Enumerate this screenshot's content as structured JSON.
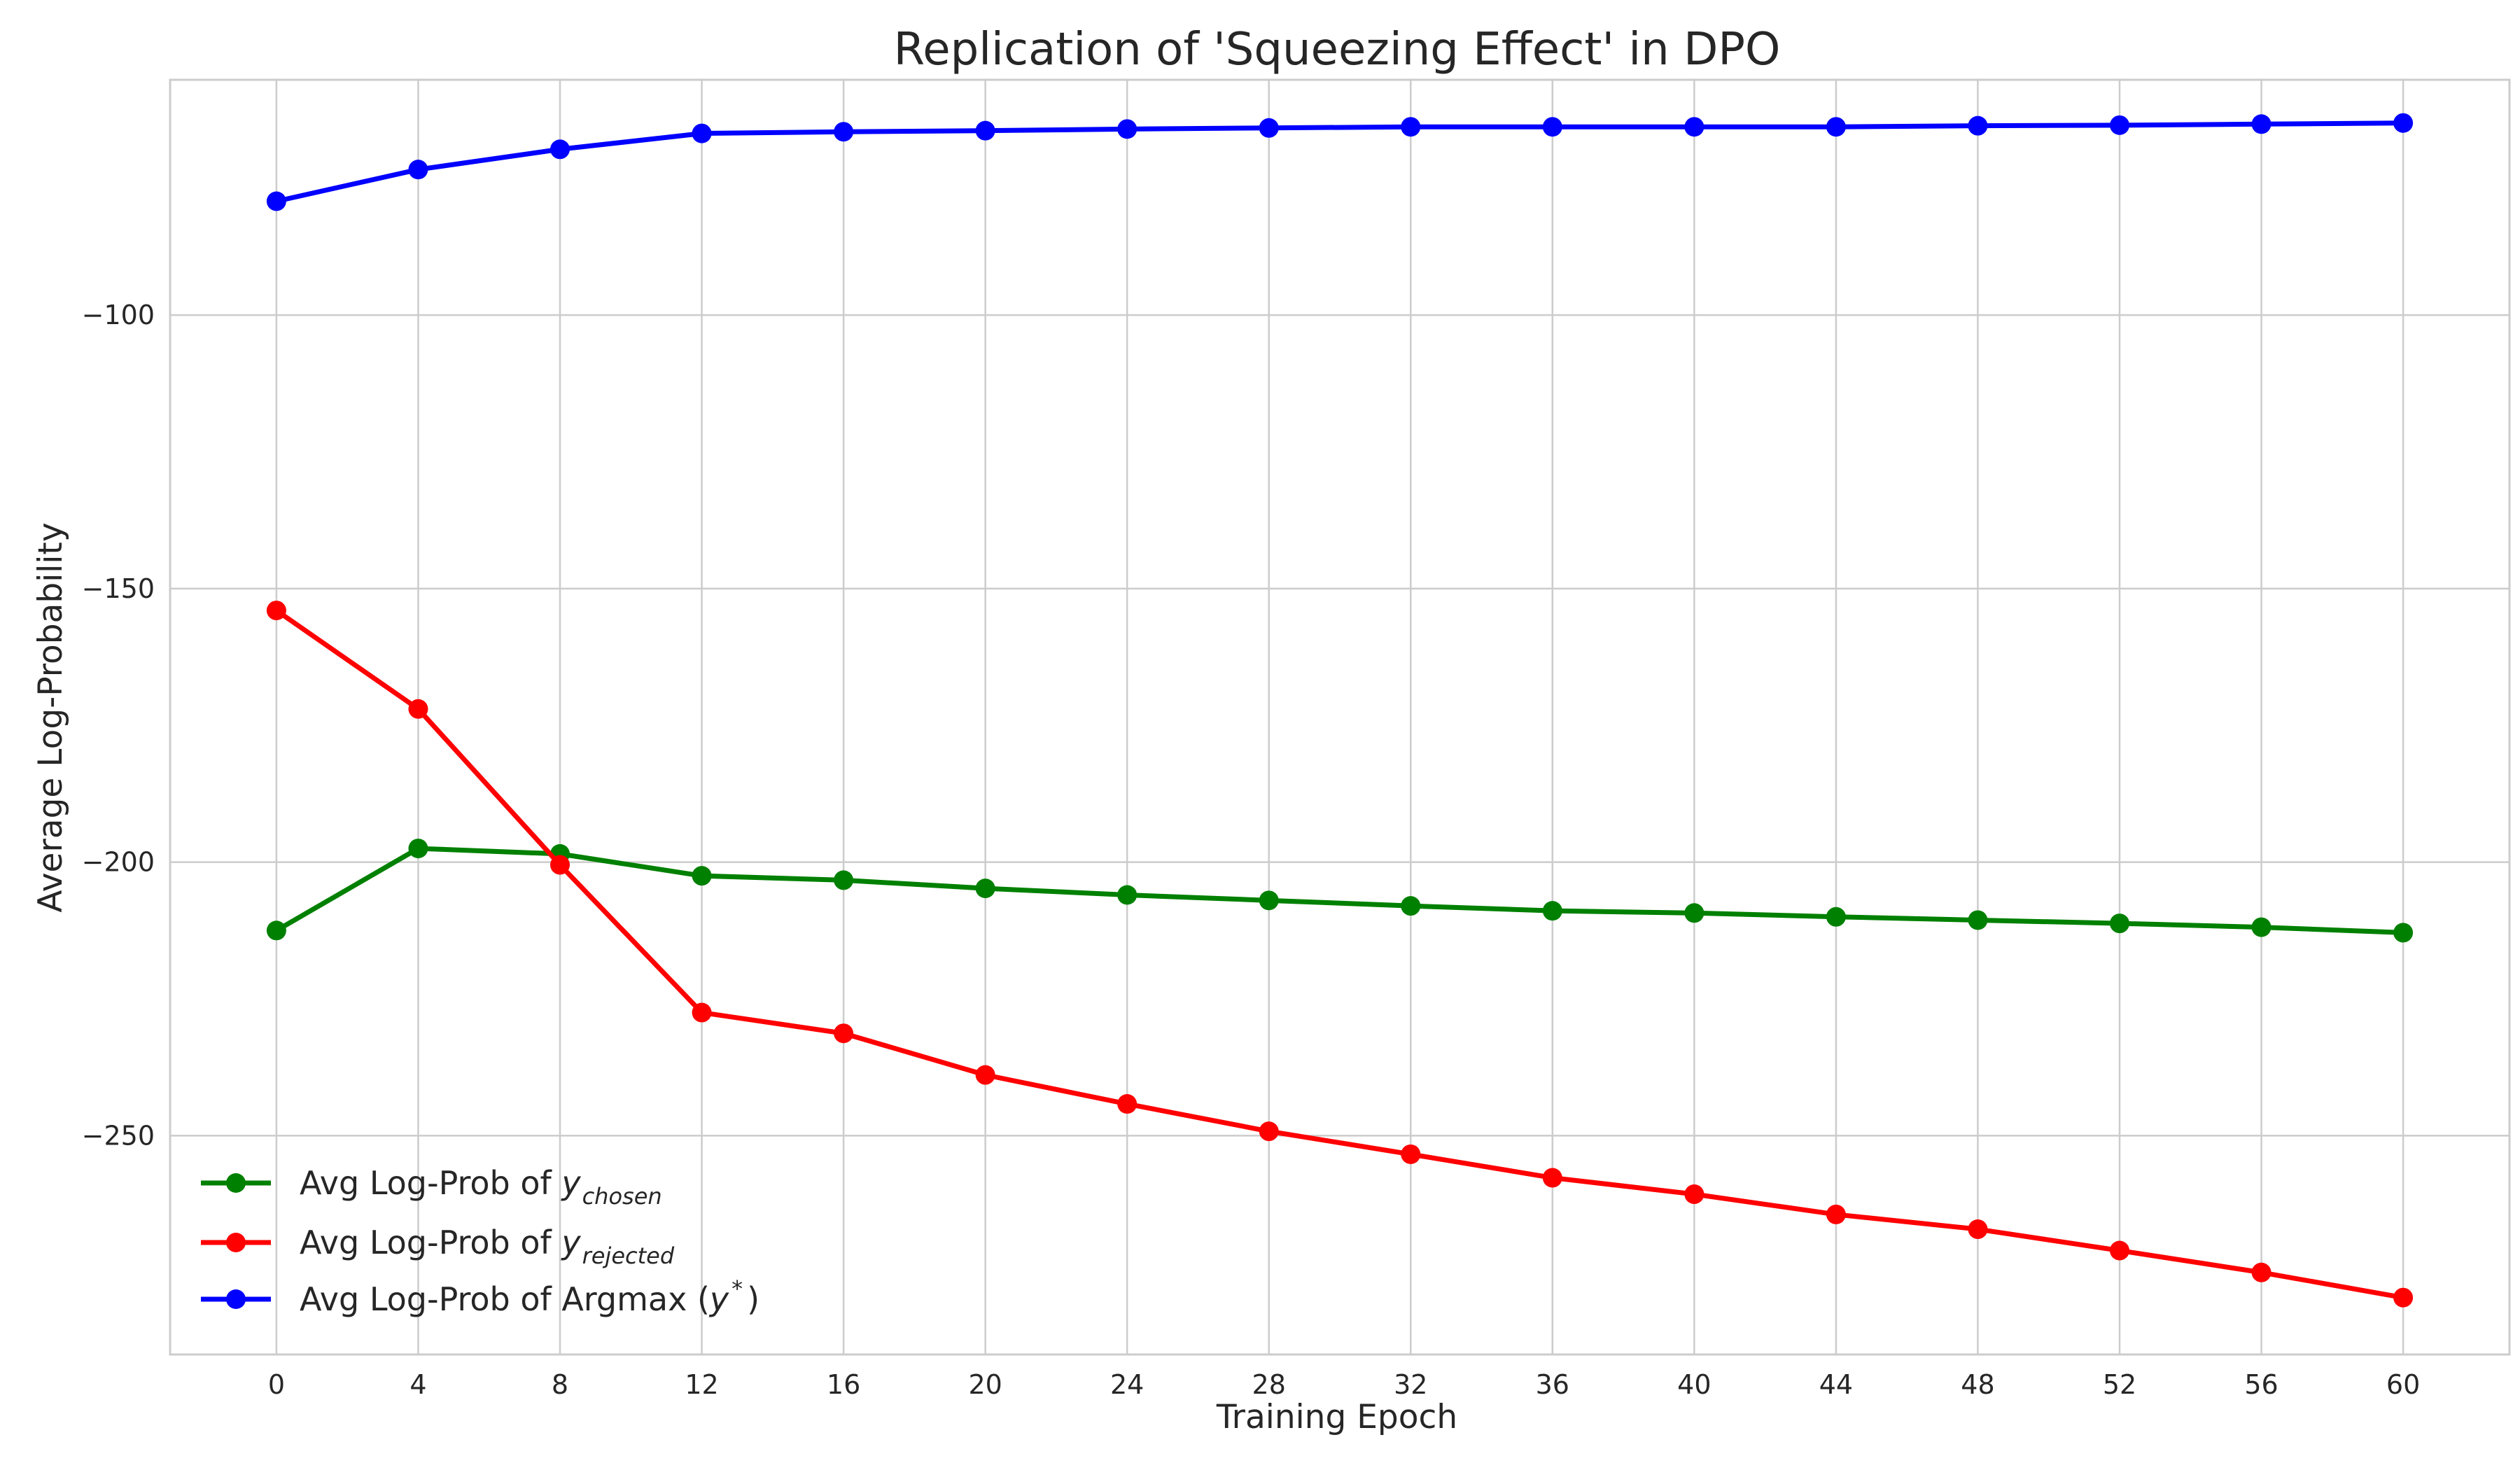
{
  "chart_data": {
    "type": "line",
    "title": "Replication of 'Squeezing Effect' in DPO",
    "xlabel": "Training Epoch",
    "ylabel": "Average Log-Probability",
    "x": [
      0,
      4,
      8,
      12,
      16,
      20,
      24,
      28,
      32,
      36,
      40,
      44,
      48,
      52,
      56,
      60
    ],
    "xticks": [
      "0",
      "4",
      "8",
      "12",
      "16",
      "20",
      "24",
      "28",
      "32",
      "36",
      "40",
      "44",
      "48",
      "52",
      "56",
      "60"
    ],
    "yticks": [
      -100,
      -150,
      -200,
      -250
    ],
    "ytick_labels": [
      "−100",
      "−150",
      "−200",
      "−250"
    ],
    "xlim": [
      -3,
      63
    ],
    "ylim": [
      -290,
      -57
    ],
    "grid": true,
    "legend_position": "lower-left",
    "series": [
      {
        "key": "chosen",
        "legend_prefix": "Avg Log-Prob of ",
        "legend_var": "y",
        "legend_sub": "chosen",
        "legend_suffix": "",
        "color": "#008000",
        "values": [
          -212.5,
          -197.5,
          -198.5,
          -202.5,
          -203.3,
          -204.8,
          -206.0,
          -207.0,
          -208.0,
          -208.9,
          -209.3,
          -210.0,
          -210.6,
          -211.2,
          -211.9,
          -212.9
        ]
      },
      {
        "key": "rejected",
        "legend_prefix": "Avg Log-Prob of ",
        "legend_var": "y",
        "legend_sub": "rejected",
        "legend_suffix": "",
        "color": "#ff0000",
        "values": [
          -154.0,
          -172.0,
          -200.5,
          -227.5,
          -231.3,
          -238.9,
          -244.2,
          -249.2,
          -253.4,
          -257.7,
          -260.7,
          -264.4,
          -267.1,
          -271.0,
          -275.0,
          -279.6
        ]
      },
      {
        "key": "argmax",
        "legend_prefix": "Avg Log-Prob of Argmax (",
        "legend_var": "y",
        "legend_sup": "*",
        "legend_suffix": ")",
        "color": "#0000ff",
        "values": [
          -79.2,
          -73.4,
          -69.7,
          -66.8,
          -66.5,
          -66.3,
          -66.0,
          -65.8,
          -65.6,
          -65.6,
          -65.6,
          -65.6,
          -65.4,
          -65.3,
          -65.1,
          -64.9
        ]
      }
    ]
  }
}
